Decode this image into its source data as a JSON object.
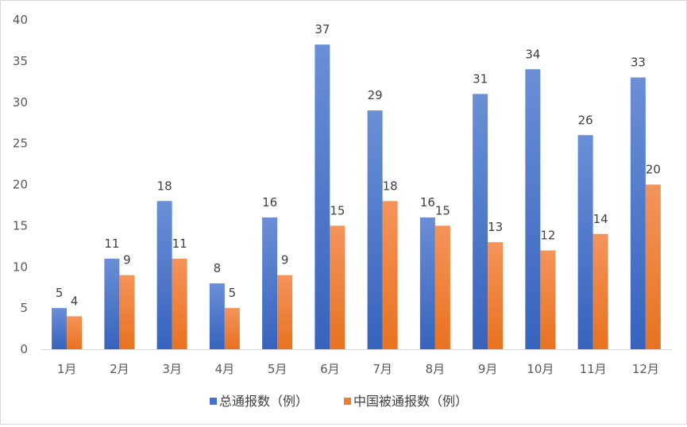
{
  "chart_data": {
    "type": "bar",
    "categories": [
      "1月",
      "2月",
      "3月",
      "4月",
      "5月",
      "6月",
      "7月",
      "8月",
      "9月",
      "10月",
      "11月",
      "12月"
    ],
    "series": [
      {
        "name": "总通报数（例）",
        "values": [
          5,
          11,
          18,
          8,
          16,
          37,
          29,
          16,
          31,
          34,
          26,
          33
        ],
        "color": "#4472c4"
      },
      {
        "name": "中国被通报数（例）",
        "values": [
          4,
          9,
          11,
          5,
          9,
          15,
          18,
          15,
          13,
          12,
          14,
          20
        ],
        "color": "#ed7d31"
      }
    ],
    "ylim": [
      0,
      40
    ],
    "yticks": [
      0,
      5,
      10,
      15,
      20,
      25,
      30,
      35,
      40
    ],
    "grid": false,
    "legend_position": "bottom",
    "data_labels": true
  }
}
